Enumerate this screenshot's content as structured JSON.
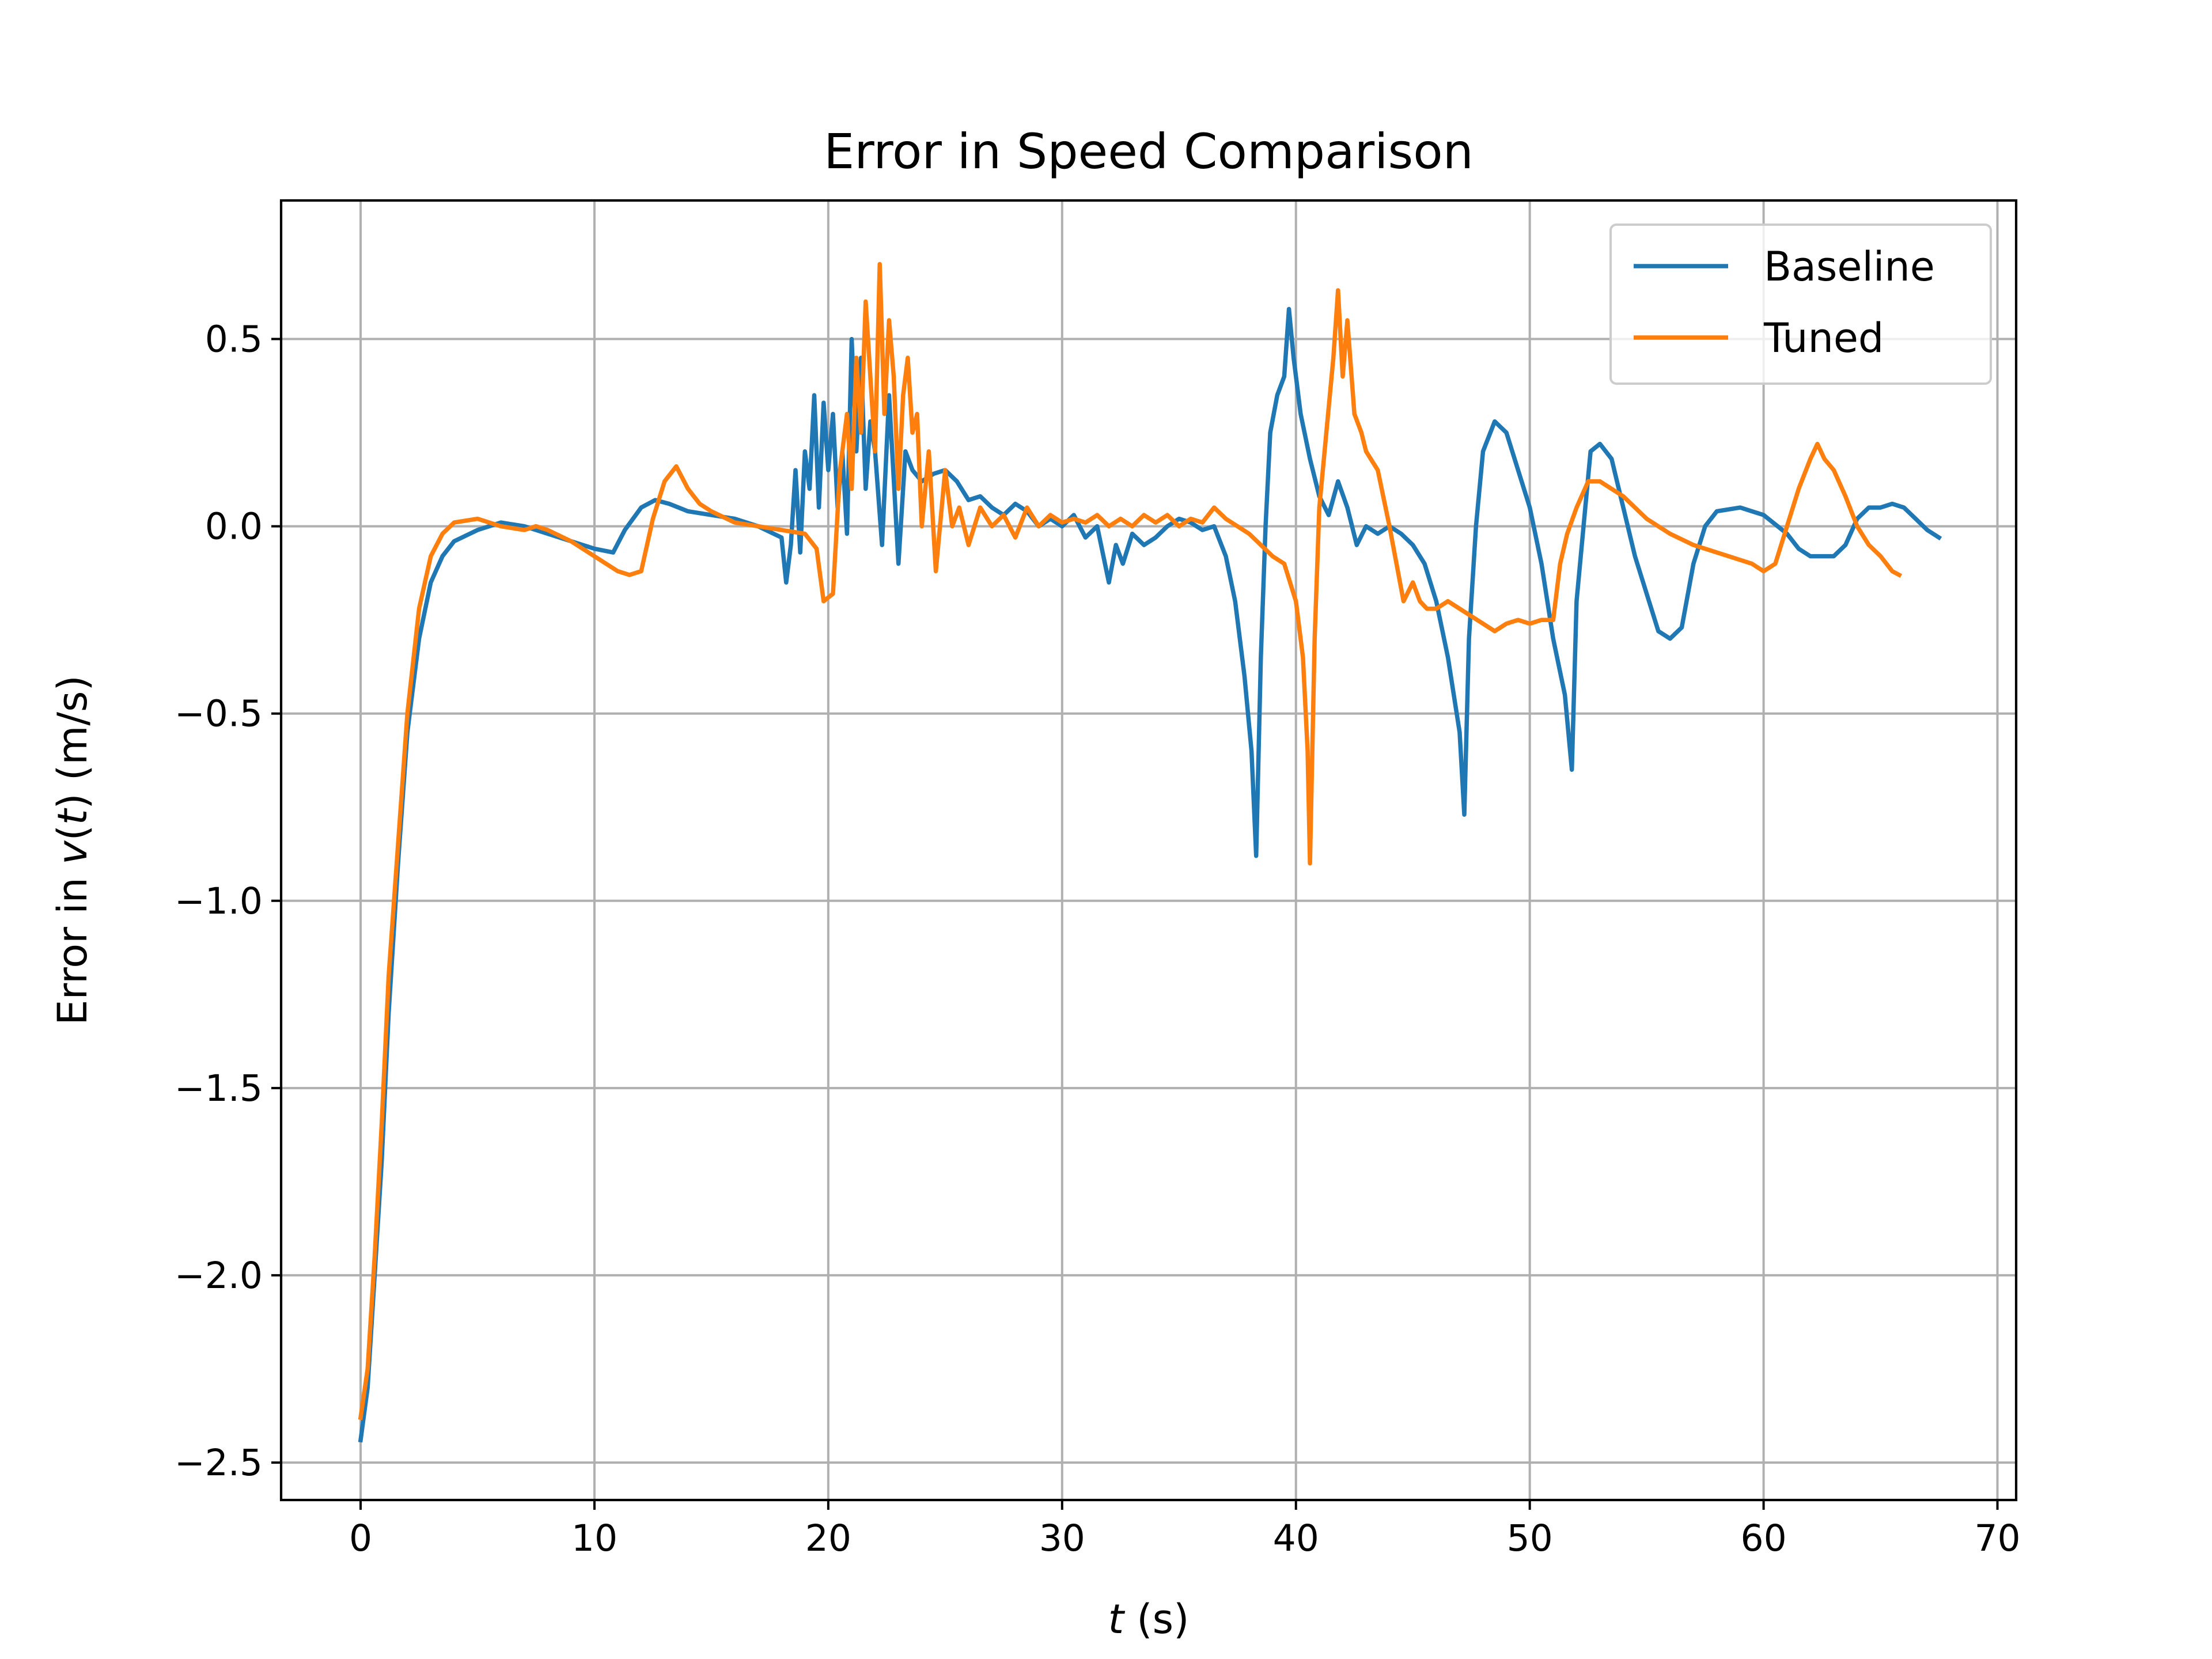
{
  "chart_data": {
    "type": "line",
    "title": "Error in Speed Comparison",
    "xlabel": {
      "var": "t",
      "rest": " (s)"
    },
    "ylabel": {
      "pre": "Error in ",
      "var": "v",
      "open": "(",
      "var2": "t",
      "close": ") (m/s)"
    },
    "xlim": [
      -3.4,
      70.8
    ],
    "ylim": [
      -2.6,
      0.87
    ],
    "xticks": [
      0,
      10,
      20,
      30,
      40,
      50,
      60,
      70
    ],
    "xtick_labels": [
      "0",
      "10",
      "20",
      "30",
      "40",
      "50",
      "60",
      "70"
    ],
    "yticks": [
      -2.5,
      -2.0,
      -1.5,
      -1.0,
      -0.5,
      0.0,
      0.5
    ],
    "ytick_labels": [
      "−2.5",
      "−2.0",
      "−1.5",
      "−1.0",
      "−0.5",
      "0.0",
      "0.5"
    ],
    "grid": true,
    "legend_position": "top-right",
    "series": [
      {
        "name": "Baseline",
        "color": "#1f77b4",
        "points": [
          [
            0,
            -2.44
          ],
          [
            0.3,
            -2.3
          ],
          [
            0.6,
            -2.0
          ],
          [
            0.9,
            -1.7
          ],
          [
            1.2,
            -1.3
          ],
          [
            1.6,
            -0.9
          ],
          [
            2.0,
            -0.55
          ],
          [
            2.5,
            -0.3
          ],
          [
            3.0,
            -0.15
          ],
          [
            3.5,
            -0.08
          ],
          [
            4.0,
            -0.04
          ],
          [
            5.0,
            -0.01
          ],
          [
            6.0,
            0.01
          ],
          [
            7.0,
            0.0
          ],
          [
            8.0,
            -0.02
          ],
          [
            9.0,
            -0.04
          ],
          [
            10.0,
            -0.06
          ],
          [
            10.8,
            -0.07
          ],
          [
            11.3,
            -0.01
          ],
          [
            12.0,
            0.05
          ],
          [
            12.6,
            0.07
          ],
          [
            13.2,
            0.06
          ],
          [
            14.0,
            0.04
          ],
          [
            15.0,
            0.03
          ],
          [
            16.0,
            0.02
          ],
          [
            17.0,
            0.0
          ],
          [
            18.0,
            -0.03
          ],
          [
            18.2,
            -0.15
          ],
          [
            18.4,
            -0.05
          ],
          [
            18.6,
            0.15
          ],
          [
            18.8,
            -0.07
          ],
          [
            19.0,
            0.2
          ],
          [
            19.2,
            0.1
          ],
          [
            19.4,
            0.35
          ],
          [
            19.6,
            0.05
          ],
          [
            19.8,
            0.33
          ],
          [
            20.0,
            0.15
          ],
          [
            20.2,
            0.3
          ],
          [
            20.4,
            0.05
          ],
          [
            20.6,
            0.2
          ],
          [
            20.8,
            -0.02
          ],
          [
            21.0,
            0.5
          ],
          [
            21.2,
            0.2
          ],
          [
            21.4,
            0.45
          ],
          [
            21.6,
            0.1
          ],
          [
            21.8,
            0.28
          ],
          [
            22.0,
            0.2
          ],
          [
            22.3,
            -0.05
          ],
          [
            22.6,
            0.35
          ],
          [
            23.0,
            -0.1
          ],
          [
            23.3,
            0.2
          ],
          [
            23.6,
            0.15
          ],
          [
            24.0,
            0.12
          ],
          [
            24.5,
            0.14
          ],
          [
            25.0,
            0.15
          ],
          [
            25.5,
            0.12
          ],
          [
            26.0,
            0.07
          ],
          [
            26.5,
            0.08
          ],
          [
            27.0,
            0.05
          ],
          [
            27.5,
            0.03
          ],
          [
            28.0,
            0.06
          ],
          [
            28.5,
            0.04
          ],
          [
            29.0,
            0.0
          ],
          [
            29.5,
            0.02
          ],
          [
            30.0,
            0.0
          ],
          [
            30.5,
            0.03
          ],
          [
            31.0,
            -0.03
          ],
          [
            31.5,
            0.0
          ],
          [
            32.0,
            -0.15
          ],
          [
            32.3,
            -0.05
          ],
          [
            32.6,
            -0.1
          ],
          [
            33.0,
            -0.02
          ],
          [
            33.5,
            -0.05
          ],
          [
            34.0,
            -0.03
          ],
          [
            34.5,
            0.0
          ],
          [
            35.0,
            0.02
          ],
          [
            35.5,
            0.01
          ],
          [
            36.0,
            -0.01
          ],
          [
            36.5,
            0.0
          ],
          [
            37.0,
            -0.08
          ],
          [
            37.4,
            -0.2
          ],
          [
            37.8,
            -0.4
          ],
          [
            38.1,
            -0.6
          ],
          [
            38.3,
            -0.88
          ],
          [
            38.5,
            -0.35
          ],
          [
            38.7,
            0.0
          ],
          [
            38.9,
            0.25
          ],
          [
            39.2,
            0.35
          ],
          [
            39.5,
            0.4
          ],
          [
            39.7,
            0.58
          ],
          [
            39.9,
            0.45
          ],
          [
            40.2,
            0.3
          ],
          [
            40.6,
            0.18
          ],
          [
            41.0,
            0.08
          ],
          [
            41.4,
            0.03
          ],
          [
            41.8,
            0.12
          ],
          [
            42.2,
            0.05
          ],
          [
            42.6,
            -0.05
          ],
          [
            43.0,
            0.0
          ],
          [
            43.5,
            -0.02
          ],
          [
            44.0,
            0.0
          ],
          [
            44.5,
            -0.02
          ],
          [
            45.0,
            -0.05
          ],
          [
            45.5,
            -0.1
          ],
          [
            46.0,
            -0.2
          ],
          [
            46.5,
            -0.35
          ],
          [
            47.0,
            -0.55
          ],
          [
            47.2,
            -0.77
          ],
          [
            47.4,
            -0.3
          ],
          [
            47.7,
            0.0
          ],
          [
            48.0,
            0.2
          ],
          [
            48.5,
            0.28
          ],
          [
            49.0,
            0.25
          ],
          [
            49.5,
            0.15
          ],
          [
            50.0,
            0.05
          ],
          [
            50.5,
            -0.1
          ],
          [
            51.0,
            -0.3
          ],
          [
            51.5,
            -0.45
          ],
          [
            51.8,
            -0.65
          ],
          [
            52.0,
            -0.2
          ],
          [
            52.3,
            0.0
          ],
          [
            52.6,
            0.2
          ],
          [
            53.0,
            0.22
          ],
          [
            53.5,
            0.18
          ],
          [
            54.0,
            0.05
          ],
          [
            54.5,
            -0.08
          ],
          [
            55.0,
            -0.18
          ],
          [
            55.5,
            -0.28
          ],
          [
            56.0,
            -0.3
          ],
          [
            56.5,
            -0.27
          ],
          [
            57.0,
            -0.1
          ],
          [
            57.5,
            0.0
          ],
          [
            58.0,
            0.04
          ],
          [
            59.0,
            0.05
          ],
          [
            60.0,
            0.03
          ],
          [
            61.0,
            -0.02
          ],
          [
            61.5,
            -0.06
          ],
          [
            62.0,
            -0.08
          ],
          [
            63.0,
            -0.08
          ],
          [
            63.5,
            -0.05
          ],
          [
            64.0,
            0.02
          ],
          [
            64.5,
            0.05
          ],
          [
            65.0,
            0.05
          ],
          [
            65.5,
            0.06
          ],
          [
            66.0,
            0.05
          ],
          [
            66.5,
            0.02
          ],
          [
            67.0,
            -0.01
          ],
          [
            67.5,
            -0.03
          ]
        ]
      },
      {
        "name": "Tuned",
        "color": "#ff7f0e",
        "points": [
          [
            0,
            -2.38
          ],
          [
            0.3,
            -2.25
          ],
          [
            0.6,
            -1.95
          ],
          [
            0.9,
            -1.6
          ],
          [
            1.2,
            -1.2
          ],
          [
            1.6,
            -0.85
          ],
          [
            2.0,
            -0.5
          ],
          [
            2.5,
            -0.22
          ],
          [
            3.0,
            -0.08
          ],
          [
            3.5,
            -0.02
          ],
          [
            4.0,
            0.01
          ],
          [
            5.0,
            0.02
          ],
          [
            6.0,
            0.0
          ],
          [
            7.0,
            -0.01
          ],
          [
            7.5,
            0.0
          ],
          [
            8.0,
            -0.01
          ],
          [
            9.0,
            -0.04
          ],
          [
            10.0,
            -0.08
          ],
          [
            10.5,
            -0.1
          ],
          [
            11.0,
            -0.12
          ],
          [
            11.5,
            -0.13
          ],
          [
            12.0,
            -0.12
          ],
          [
            12.5,
            0.02
          ],
          [
            13.0,
            0.12
          ],
          [
            13.5,
            0.16
          ],
          [
            14.0,
            0.1
          ],
          [
            14.5,
            0.06
          ],
          [
            15.0,
            0.04
          ],
          [
            16.0,
            0.01
          ],
          [
            17.0,
            0.0
          ],
          [
            18.0,
            -0.01
          ],
          [
            19.0,
            -0.02
          ],
          [
            19.5,
            -0.06
          ],
          [
            19.8,
            -0.2
          ],
          [
            20.2,
            -0.18
          ],
          [
            20.5,
            0.15
          ],
          [
            20.8,
            0.3
          ],
          [
            21.0,
            0.1
          ],
          [
            21.2,
            0.45
          ],
          [
            21.4,
            0.25
          ],
          [
            21.6,
            0.6
          ],
          [
            21.8,
            0.4
          ],
          [
            22.0,
            0.2
          ],
          [
            22.2,
            0.7
          ],
          [
            22.4,
            0.3
          ],
          [
            22.6,
            0.55
          ],
          [
            22.8,
            0.4
          ],
          [
            23.0,
            0.1
          ],
          [
            23.2,
            0.35
          ],
          [
            23.4,
            0.45
          ],
          [
            23.6,
            0.25
          ],
          [
            23.8,
            0.3
          ],
          [
            24.0,
            0.0
          ],
          [
            24.3,
            0.2
          ],
          [
            24.6,
            -0.12
          ],
          [
            25.0,
            0.15
          ],
          [
            25.3,
            0.0
          ],
          [
            25.6,
            0.05
          ],
          [
            26.0,
            -0.05
          ],
          [
            26.5,
            0.05
          ],
          [
            27.0,
            0.0
          ],
          [
            27.5,
            0.03
          ],
          [
            28.0,
            -0.03
          ],
          [
            28.5,
            0.05
          ],
          [
            29.0,
            0.0
          ],
          [
            29.5,
            0.03
          ],
          [
            30.0,
            0.01
          ],
          [
            30.5,
            0.02
          ],
          [
            31.0,
            0.01
          ],
          [
            31.5,
            0.03
          ],
          [
            32.0,
            0.0
          ],
          [
            32.5,
            0.02
          ],
          [
            33.0,
            0.0
          ],
          [
            33.5,
            0.03
          ],
          [
            34.0,
            0.01
          ],
          [
            34.5,
            0.03
          ],
          [
            35.0,
            0.0
          ],
          [
            35.5,
            0.02
          ],
          [
            36.0,
            0.01
          ],
          [
            36.5,
            0.05
          ],
          [
            37.0,
            0.02
          ],
          [
            37.5,
            0.0
          ],
          [
            38.0,
            -0.02
          ],
          [
            38.5,
            -0.05
          ],
          [
            39.0,
            -0.08
          ],
          [
            39.5,
            -0.1
          ],
          [
            40.0,
            -0.2
          ],
          [
            40.3,
            -0.35
          ],
          [
            40.5,
            -0.6
          ],
          [
            40.6,
            -0.9
          ],
          [
            40.8,
            -0.3
          ],
          [
            41.0,
            0.05
          ],
          [
            41.3,
            0.25
          ],
          [
            41.6,
            0.45
          ],
          [
            41.8,
            0.63
          ],
          [
            42.0,
            0.4
          ],
          [
            42.2,
            0.55
          ],
          [
            42.5,
            0.3
          ],
          [
            42.8,
            0.25
          ],
          [
            43.0,
            0.2
          ],
          [
            43.5,
            0.15
          ],
          [
            44.0,
            0.0
          ],
          [
            44.3,
            -0.1
          ],
          [
            44.6,
            -0.2
          ],
          [
            45.0,
            -0.15
          ],
          [
            45.3,
            -0.2
          ],
          [
            45.6,
            -0.22
          ],
          [
            46.0,
            -0.22
          ],
          [
            46.5,
            -0.2
          ],
          [
            47.0,
            -0.22
          ],
          [
            47.5,
            -0.24
          ],
          [
            48.0,
            -0.26
          ],
          [
            48.5,
            -0.28
          ],
          [
            49.0,
            -0.26
          ],
          [
            49.5,
            -0.25
          ],
          [
            50.0,
            -0.26
          ],
          [
            50.5,
            -0.25
          ],
          [
            51.0,
            -0.25
          ],
          [
            51.3,
            -0.1
          ],
          [
            51.6,
            -0.02
          ],
          [
            52.0,
            0.05
          ],
          [
            52.5,
            0.12
          ],
          [
            53.0,
            0.12
          ],
          [
            53.5,
            0.1
          ],
          [
            54.0,
            0.08
          ],
          [
            54.5,
            0.05
          ],
          [
            55.0,
            0.02
          ],
          [
            55.5,
            0.0
          ],
          [
            56.0,
            -0.02
          ],
          [
            57.0,
            -0.05
          ],
          [
            58.0,
            -0.07
          ],
          [
            59.0,
            -0.09
          ],
          [
            59.5,
            -0.1
          ],
          [
            60.0,
            -0.12
          ],
          [
            60.5,
            -0.1
          ],
          [
            61.0,
            0.0
          ],
          [
            61.5,
            0.1
          ],
          [
            62.0,
            0.18
          ],
          [
            62.3,
            0.22
          ],
          [
            62.6,
            0.18
          ],
          [
            63.0,
            0.15
          ],
          [
            63.5,
            0.08
          ],
          [
            64.0,
            0.0
          ],
          [
            64.5,
            -0.05
          ],
          [
            65.0,
            -0.08
          ],
          [
            65.5,
            -0.12
          ],
          [
            65.8,
            -0.13
          ]
        ]
      }
    ]
  }
}
